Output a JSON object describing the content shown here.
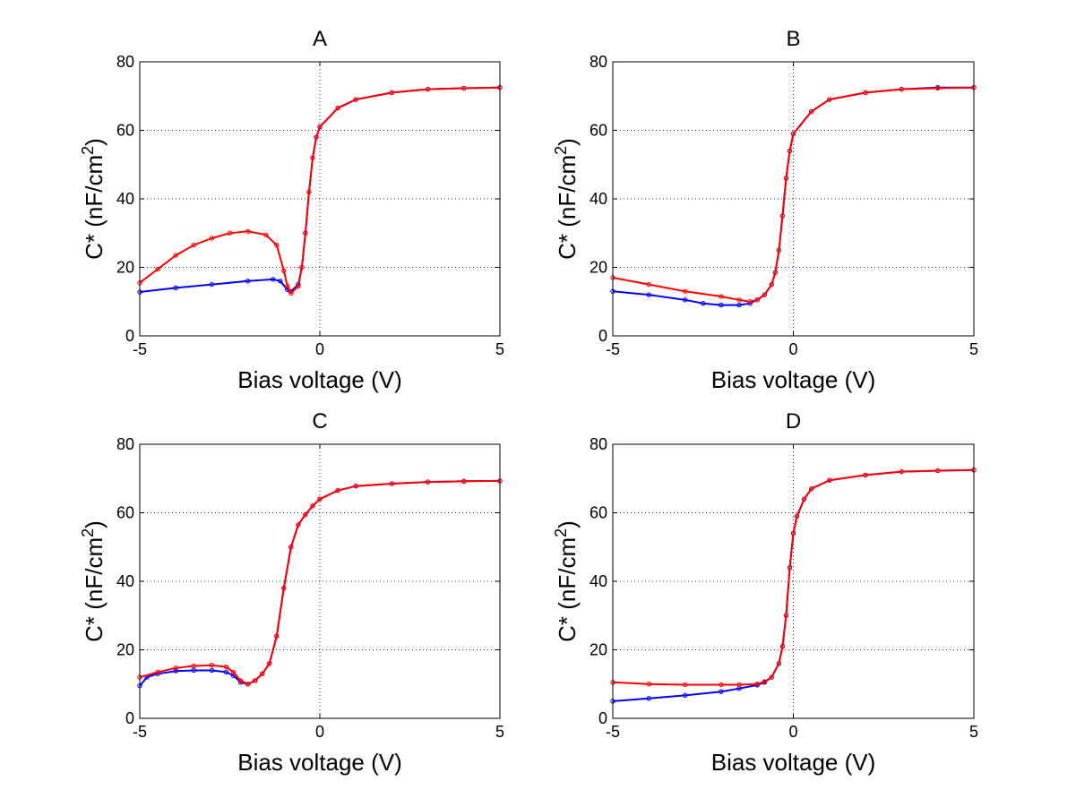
{
  "chart_data": [
    {
      "type": "line",
      "title": "A",
      "xlabel": "Bias voltage (V)",
      "ylabel": "C* (nF/cm²)",
      "ylabel_main": "C* (nF/cm",
      "ylabel_sup": "2",
      "ylabel_tail": ")",
      "xlim": [
        -5,
        5
      ],
      "ylim": [
        0,
        80
      ],
      "xticks": [
        "-5",
        "0",
        "5"
      ],
      "yticks": [
        "0",
        "20",
        "40",
        "60",
        "80"
      ],
      "grid": true,
      "series": [
        {
          "color": "#0000ff",
          "marker": "circle",
          "x": [
            -5,
            -4,
            -3,
            -2,
            -1.3,
            -1.1,
            -0.9,
            -0.8,
            -0.6,
            -0.5,
            -0.4,
            -0.3,
            -0.2,
            -0.1,
            0,
            0.5,
            1,
            2,
            3,
            4,
            5
          ],
          "y": [
            12.8,
            14.0,
            15.0,
            16.0,
            16.5,
            16.0,
            13.5,
            13.0,
            15.0,
            20.0,
            30.0,
            42.0,
            52.0,
            58.0,
            61.0,
            66.5,
            69.0,
            71.0,
            72.0,
            72.3,
            72.5
          ]
        },
        {
          "color": "#ff0000",
          "marker": "circle",
          "x": [
            -5,
            -4.5,
            -4,
            -3.5,
            -3,
            -2.5,
            -2,
            -1.5,
            -1.2,
            -1.0,
            -0.9,
            -0.8,
            -0.6,
            -0.5,
            -0.4,
            -0.3,
            -0.2,
            -0.1,
            0,
            0.5,
            1,
            2,
            3,
            4,
            5
          ],
          "y": [
            15.5,
            19.5,
            23.5,
            26.5,
            28.5,
            30.0,
            30.5,
            29.5,
            26.5,
            19.0,
            14.5,
            12.5,
            14.5,
            20.0,
            30.0,
            42.0,
            52.0,
            58.0,
            61.0,
            66.5,
            69.0,
            71.0,
            72.0,
            72.3,
            72.5
          ]
        }
      ]
    },
    {
      "type": "line",
      "title": "B",
      "xlabel": "Bias voltage (V)",
      "ylabel": "C* (nF/cm²)",
      "ylabel_main": "C* (nF/cm",
      "ylabel_sup": "2",
      "ylabel_tail": ")",
      "xlim": [
        -5,
        5
      ],
      "ylim": [
        0,
        80
      ],
      "xticks": [
        "-5",
        "0",
        "5"
      ],
      "yticks": [
        "0",
        "20",
        "40",
        "60",
        "80"
      ],
      "grid": true,
      "series": [
        {
          "color": "#0000ff",
          "marker": "circle",
          "x": [
            -5,
            -4,
            -3,
            -2.5,
            -2,
            -1.5,
            -1.2,
            -1.0,
            -0.8,
            -0.6,
            -0.5,
            -0.4,
            -0.3,
            -0.2,
            -0.1,
            0,
            0.5,
            1,
            2,
            3,
            4,
            5
          ],
          "y": [
            13.0,
            12.0,
            10.5,
            9.5,
            9.0,
            9.0,
            9.5,
            10.5,
            12.0,
            15.0,
            18.5,
            25.0,
            35.0,
            46.0,
            54.0,
            59.0,
            65.5,
            69.0,
            71.0,
            72.0,
            72.5,
            72.5
          ]
        },
        {
          "color": "#ff0000",
          "marker": "circle",
          "x": [
            -5,
            -4,
            -3,
            -2,
            -1.5,
            -1.2,
            -1.0,
            -0.8,
            -0.6,
            -0.5,
            -0.4,
            -0.3,
            -0.2,
            -0.1,
            0,
            0.5,
            1,
            2,
            3,
            4,
            5
          ],
          "y": [
            17.0,
            15.0,
            13.0,
            11.5,
            10.5,
            10.0,
            10.5,
            12.0,
            15.0,
            18.5,
            25.0,
            35.0,
            46.0,
            54.0,
            59.0,
            65.5,
            69.0,
            71.0,
            72.0,
            72.3,
            72.5
          ]
        }
      ]
    },
    {
      "type": "line",
      "title": "C",
      "xlabel": "Bias voltage (V)",
      "ylabel": "C* (nF/cm²)",
      "ylabel_main": "C* (nF/cm",
      "ylabel_sup": "2",
      "ylabel_tail": ")",
      "xlim": [
        -5,
        5
      ],
      "ylim": [
        0,
        80
      ],
      "xticks": [
        "-5",
        "0",
        "5"
      ],
      "yticks": [
        "0",
        "20",
        "40",
        "60",
        "80"
      ],
      "grid": true,
      "series": [
        {
          "color": "#0000ff",
          "marker": "circle",
          "x": [
            -5,
            -4.8,
            -4.5,
            -4,
            -3.5,
            -3,
            -2.6,
            -2.4,
            -2.2,
            -2.0,
            -1.8,
            -1.6,
            -1.4,
            -1.2,
            -1.0,
            -0.8,
            -0.6,
            -0.4,
            -0.2,
            0,
            0.5,
            1,
            2,
            3,
            4,
            5
          ],
          "y": [
            9.5,
            12.0,
            13.0,
            13.8,
            14.0,
            14.0,
            13.5,
            12.5,
            10.5,
            10.0,
            11.0,
            13.0,
            16.0,
            24.0,
            38.0,
            50.0,
            56.5,
            59.5,
            62.0,
            64.0,
            66.5,
            67.8,
            68.5,
            69.0,
            69.2,
            69.3
          ]
        },
        {
          "color": "#ff0000",
          "marker": "circle",
          "x": [
            -5,
            -4.5,
            -4,
            -3.5,
            -3,
            -2.6,
            -2.4,
            -2.2,
            -2.0,
            -1.8,
            -1.6,
            -1.4,
            -1.2,
            -1.0,
            -0.8,
            -0.6,
            -0.4,
            -0.2,
            0,
            0.5,
            1,
            2,
            3,
            4,
            5
          ],
          "y": [
            12.0,
            13.5,
            14.7,
            15.3,
            15.5,
            15.0,
            13.5,
            11.0,
            10.0,
            11.0,
            13.0,
            16.0,
            24.0,
            38.0,
            50.0,
            56.5,
            59.5,
            62.0,
            64.0,
            66.5,
            67.8,
            68.5,
            69.0,
            69.2,
            69.3
          ]
        }
      ]
    },
    {
      "type": "line",
      "title": "D",
      "xlabel": "Bias voltage (V)",
      "ylabel": "C* (nF/cm²)",
      "ylabel_main": "C* (nF/cm",
      "ylabel_sup": "2",
      "ylabel_tail": ")",
      "xlim": [
        -5,
        5
      ],
      "ylim": [
        0,
        80
      ],
      "xticks": [
        "-5",
        "0",
        "5"
      ],
      "yticks": [
        "0",
        "20",
        "40",
        "60",
        "80"
      ],
      "grid": true,
      "series": [
        {
          "color": "#0000ff",
          "marker": "circle",
          "x": [
            -5,
            -4,
            -3,
            -2,
            -1.5,
            -1.0,
            -0.8,
            -0.6,
            -0.4,
            -0.3,
            -0.2,
            -0.1,
            0,
            0.1,
            0.3,
            0.5,
            1,
            2,
            3,
            4,
            5
          ],
          "y": [
            5.0,
            5.8,
            6.7,
            7.8,
            8.7,
            9.7,
            10.5,
            12.0,
            16.0,
            21.0,
            30.0,
            44.0,
            54.0,
            59.0,
            64.0,
            67.0,
            69.5,
            71.0,
            72.0,
            72.3,
            72.5
          ]
        },
        {
          "color": "#ff0000",
          "marker": "circle",
          "x": [
            -5,
            -4,
            -3,
            -2,
            -1.5,
            -1.0,
            -0.8,
            -0.6,
            -0.4,
            -0.3,
            -0.2,
            -0.1,
            0,
            0.1,
            0.3,
            0.5,
            1,
            2,
            3,
            4,
            5
          ],
          "y": [
            10.5,
            10.0,
            9.8,
            9.8,
            9.8,
            10.0,
            10.7,
            12.0,
            16.0,
            21.0,
            30.0,
            44.0,
            54.0,
            59.0,
            64.0,
            67.0,
            69.5,
            71.0,
            72.0,
            72.3,
            72.5
          ]
        }
      ]
    }
  ]
}
